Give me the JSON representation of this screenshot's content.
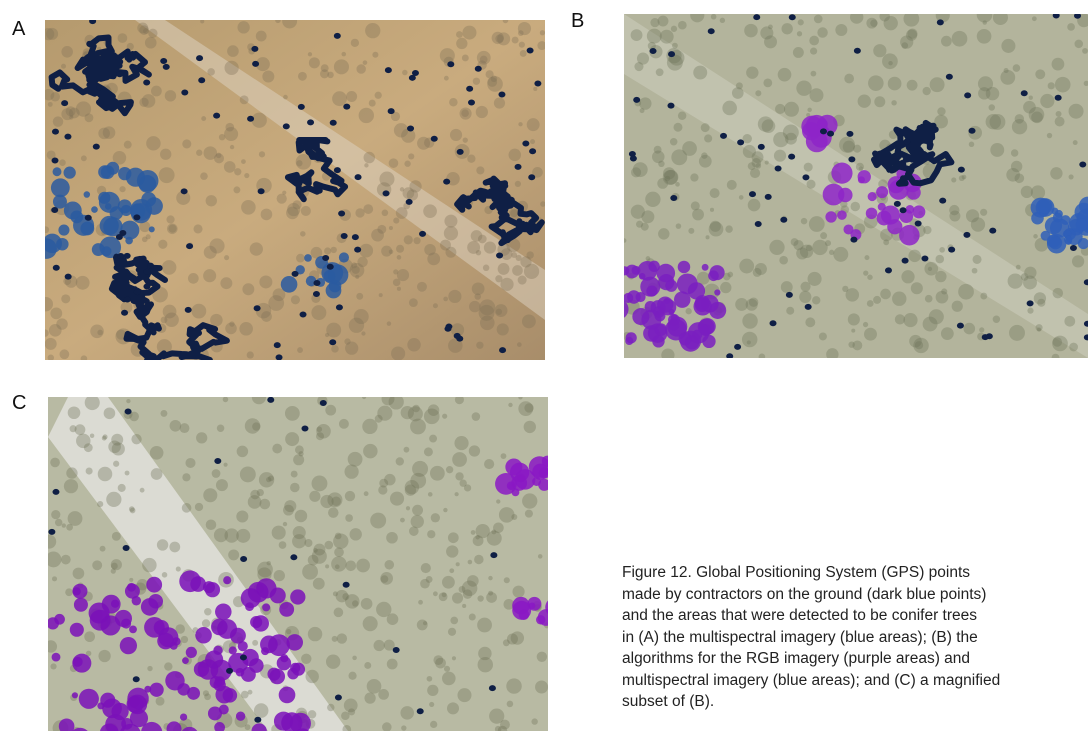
{
  "figure": {
    "panels": [
      {
        "label": "A"
      },
      {
        "label": "B"
      },
      {
        "label": "C"
      }
    ],
    "caption_lines": [
      "Figure 12.   Global Positioning System (GPS) points",
      "made by contractors on the ground (dark blue points)",
      "and the areas that were detected to be conifer trees",
      "in (A) the multispectral imagery (blue areas); (B) the",
      "algorithms for the RGB imagery (purple areas) and",
      "multispectral imagery (blue areas); and (C) a magnified",
      "subset of (B)."
    ]
  }
}
